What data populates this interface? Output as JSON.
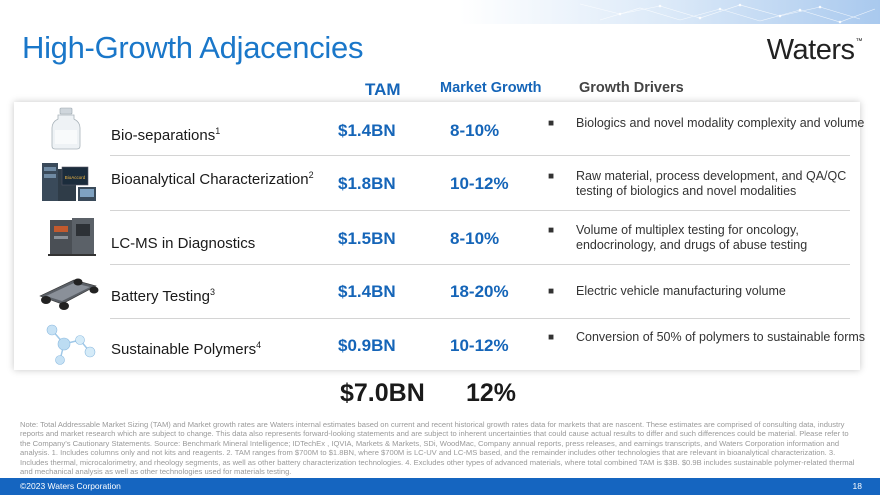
{
  "title": "High-Growth Adjacencies",
  "logo": {
    "text": "Waters",
    "tm": "™"
  },
  "headers": {
    "tam": "TAM",
    "market_growth": "Market Growth",
    "growth_drivers": "Growth Drivers"
  },
  "rows": [
    {
      "segment": "Bio-separations",
      "sup": "1",
      "tam": "$1.4BN",
      "growth": "8-10%",
      "drivers": "Biologics and novel modality complexity and volume",
      "icon": "vial-icon"
    },
    {
      "segment": "Bioanalytical Characterization",
      "sup": "2",
      "tam": "$1.8BN",
      "growth": "10-12%",
      "drivers": "Raw material, process development, and QA/QC testing of biologics and novel modalities",
      "icon": "instrument-system-icon",
      "icon_label": "BioAccord"
    },
    {
      "segment": "LC-MS in Diagnostics",
      "sup": "",
      "tam": "$1.5BN",
      "growth": "8-10%",
      "drivers": "Volume of multiplex testing for oncology, endocrinology, and drugs of abuse testing",
      "icon": "mass-spectrometer-icon"
    },
    {
      "segment": "Battery Testing",
      "sup": "3",
      "tam": "$1.4BN",
      "growth": "18-20%",
      "drivers": "Electric vehicle manufacturing volume",
      "icon": "ev-chassis-icon"
    },
    {
      "segment": "Sustainable Polymers",
      "sup": "4",
      "tam": "$0.9BN",
      "growth": "10-12%",
      "drivers": "Conversion of 50% of polymers to sustainable forms",
      "icon": "molecule-icon"
    }
  ],
  "totals": {
    "tam": "$7.0BN",
    "growth": "12%"
  },
  "note": "Note: Total Addressable Market Sizing (TAM) and Market growth rates are Waters internal estimates based on current and recent historical growth rates data for markets that are nascent. These estimates are comprised of consulting data, industry reports and market research which are subject to change. This data also represents forward-looking statements and are subject to inherent uncertainties that could cause actual results to differ and such differences could be material. Please refer to the Company’s Cautionary Statements. Source: Benchmark Mineral Intelligence; IDTechEx , IQVIA, Markets & Markets, SDi, WoodMac, Company annual reports, press releases, and earnings transcripts, and Waters Corporation information and analysis. 1. Includes columns only and not kits and reagents. 2. TAM ranges from $700M to $1.8BN, where $700M is LC-UV and LC-MS based, and the remainder includes other technologies that are relevant in bioanalytical characterization. 3. Includes thermal, microcalorimetry, and rheology segments, as well as other battery characterization technologies. 4. Excludes other types of advanced materials, where total combined TAM is $3B. $0.9B includes sustainable polymer-related thermal and mechanical analysis as well as other technologies used for materials testing.",
  "footer": {
    "copyright": "©2023 Waters Corporation",
    "page": "18"
  },
  "colors": {
    "accent": "#1565b8",
    "footer": "#1565c0"
  }
}
